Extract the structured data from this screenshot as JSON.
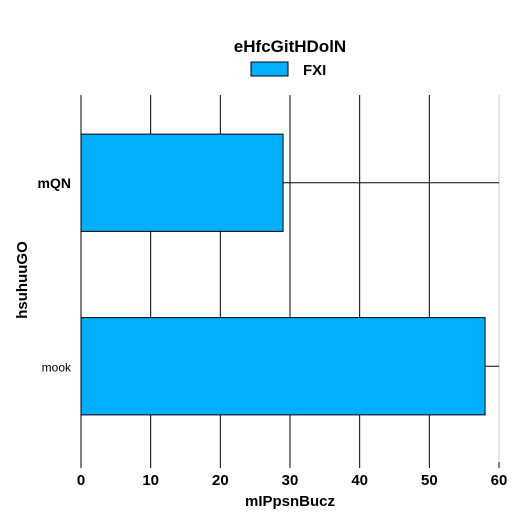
{
  "chart_data": {
    "type": "bar",
    "orientation": "horizontal",
    "title": "eHfcGitHDolN",
    "xlabel": "mIPpsnBucz",
    "ylabel": "hsuhuuGO",
    "categories": [
      "mQN",
      "mook"
    ],
    "series": [
      {
        "name": "FXI",
        "values": [
          29,
          58
        ],
        "color": "#00b0ff"
      }
    ],
    "xlim": [
      0,
      60
    ],
    "xticks": [
      "0",
      "10",
      "20",
      "30",
      "40",
      "50",
      "60"
    ],
    "grid": true,
    "legend_position": "top-center"
  }
}
